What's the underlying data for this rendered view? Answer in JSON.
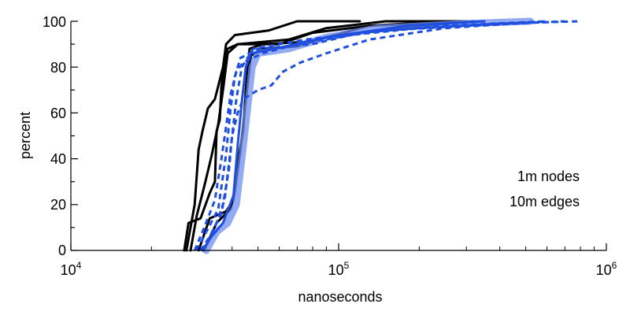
{
  "chart_data": {
    "type": "line",
    "title": "",
    "xlabel": "nanoseconds",
    "ylabel": "percent",
    "xscale": "log",
    "xlim": [
      10000,
      1000000
    ],
    "ylim": [
      0,
      100
    ],
    "x_ticks": [
      {
        "base": "10",
        "exp": "4"
      },
      {
        "base": "10",
        "exp": "5"
      },
      {
        "base": "10",
        "exp": "6"
      }
    ],
    "y_ticks": [
      "0",
      "20",
      "40",
      "60",
      "80",
      "100"
    ],
    "annotations": [
      "1m nodes",
      "10m edges"
    ],
    "grid": false,
    "legend": "none",
    "colors": {
      "black": "#000000",
      "blue": "#1f4fe0",
      "light_blue": "#6f8df0"
    },
    "series": [
      {
        "style": "solid",
        "color": "black",
        "points": [
          [
            26500,
            0
          ],
          [
            27500,
            12
          ],
          [
            30500,
            14
          ],
          [
            33000,
            25
          ],
          [
            34500,
            30
          ],
          [
            35000,
            52
          ],
          [
            36000,
            57
          ],
          [
            36500,
            72
          ],
          [
            37500,
            83
          ],
          [
            38500,
            88
          ],
          [
            42000,
            90
          ],
          [
            60000,
            90
          ],
          [
            80000,
            95
          ],
          [
            130000,
            98
          ],
          [
            250000,
            100
          ]
        ]
      },
      {
        "style": "solid",
        "color": "black",
        "points": [
          [
            27000,
            0
          ],
          [
            29000,
            20
          ],
          [
            30000,
            44
          ],
          [
            31000,
            52
          ],
          [
            32500,
            62
          ],
          [
            34500,
            66
          ],
          [
            37000,
            80
          ],
          [
            38000,
            90
          ],
          [
            41000,
            94
          ],
          [
            55000,
            96
          ],
          [
            70000,
            100
          ],
          [
            120000,
            100
          ]
        ]
      },
      {
        "style": "solid",
        "color": "black",
        "points": [
          [
            28000,
            0
          ],
          [
            29500,
            15
          ],
          [
            31500,
            28
          ],
          [
            33500,
            41
          ],
          [
            35500,
            55
          ],
          [
            37000,
            70
          ],
          [
            38500,
            86
          ],
          [
            42000,
            90
          ],
          [
            65000,
            92
          ],
          [
            90000,
            97
          ],
          [
            150000,
            100
          ],
          [
            300000,
            100
          ]
        ]
      },
      {
        "style": "solid",
        "color": "black",
        "points": [
          [
            30000,
            0
          ],
          [
            33000,
            14
          ],
          [
            38000,
            17
          ],
          [
            40500,
            22
          ],
          [
            42500,
            42
          ],
          [
            44000,
            52
          ],
          [
            45000,
            70
          ],
          [
            46500,
            88
          ],
          [
            52000,
            90
          ],
          [
            75000,
            91
          ],
          [
            100000,
            94
          ],
          [
            200000,
            98
          ],
          [
            320000,
            100
          ]
        ]
      },
      {
        "style": "solid",
        "color": "black",
        "points": [
          [
            31500,
            0
          ],
          [
            35000,
            12
          ],
          [
            39500,
            18
          ],
          [
            41000,
            26
          ],
          [
            43000,
            44
          ],
          [
            44500,
            60
          ],
          [
            46000,
            75
          ],
          [
            47000,
            85
          ],
          [
            52000,
            88
          ],
          [
            70000,
            89
          ],
          [
            90000,
            93
          ],
          [
            130000,
            98
          ],
          [
            200000,
            99
          ]
        ]
      },
      {
        "style": "solid",
        "color": "light_blue",
        "points": [
          [
            32000,
            0
          ],
          [
            35000,
            8
          ],
          [
            38500,
            12
          ],
          [
            41500,
            20
          ],
          [
            43500,
            40
          ],
          [
            45500,
            60
          ],
          [
            47500,
            80
          ],
          [
            50000,
            86
          ],
          [
            65000,
            88
          ],
          [
            90000,
            93
          ],
          [
            140000,
            97
          ],
          [
            300000,
            99
          ],
          [
            520000,
            100
          ]
        ]
      },
      {
        "style": "solid",
        "color": "blue",
        "points": [
          [
            31000,
            0
          ],
          [
            33500,
            6
          ],
          [
            37000,
            12
          ],
          [
            40500,
            24
          ],
          [
            42000,
            46
          ],
          [
            43500,
            65
          ],
          [
            45000,
            80
          ],
          [
            47000,
            86
          ],
          [
            58000,
            88
          ],
          [
            90000,
            93
          ],
          [
            180000,
            98
          ],
          [
            350000,
            100
          ]
        ]
      },
      {
        "style": "dashed",
        "color": "blue",
        "points": [
          [
            29000,
            0
          ],
          [
            31500,
            10
          ],
          [
            34500,
            22
          ],
          [
            36500,
            40
          ],
          [
            38000,
            54
          ],
          [
            39500,
            68
          ],
          [
            41500,
            78
          ],
          [
            44000,
            82
          ],
          [
            52000,
            86
          ],
          [
            70000,
            90
          ],
          [
            110000,
            94
          ],
          [
            200000,
            97
          ],
          [
            400000,
            99
          ],
          [
            800000,
            100
          ]
        ]
      },
      {
        "style": "dashed",
        "color": "blue",
        "points": [
          [
            30500,
            0
          ],
          [
            33000,
            6
          ],
          [
            36500,
            16
          ],
          [
            39000,
            36
          ],
          [
            40000,
            50
          ],
          [
            42000,
            60
          ],
          [
            44000,
            66
          ],
          [
            50000,
            70
          ],
          [
            56000,
            72
          ],
          [
            62000,
            78
          ],
          [
            72000,
            82
          ],
          [
            90000,
            86
          ],
          [
            130000,
            92
          ],
          [
            250000,
            97
          ],
          [
            600000,
            100
          ]
        ]
      },
      {
        "style": "dashed",
        "color": "blue",
        "points": [
          [
            29500,
            0
          ],
          [
            32000,
            8
          ],
          [
            35500,
            18
          ],
          [
            38000,
            42
          ],
          [
            39500,
            62
          ],
          [
            41000,
            76
          ],
          [
            43000,
            84
          ],
          [
            50000,
            88
          ],
          [
            80000,
            90
          ],
          [
            120000,
            95
          ],
          [
            250000,
            98
          ],
          [
            600000,
            100
          ]
        ]
      },
      {
        "style": "dashed",
        "color": "blue",
        "points": [
          [
            31000,
            0
          ],
          [
            34500,
            10
          ],
          [
            37500,
            22
          ],
          [
            39500,
            44
          ],
          [
            41500,
            66
          ],
          [
            43500,
            80
          ],
          [
            48000,
            88
          ],
          [
            75000,
            92
          ],
          [
            150000,
            96
          ],
          [
            300000,
            98
          ],
          [
            700000,
            100
          ]
        ]
      }
    ]
  }
}
